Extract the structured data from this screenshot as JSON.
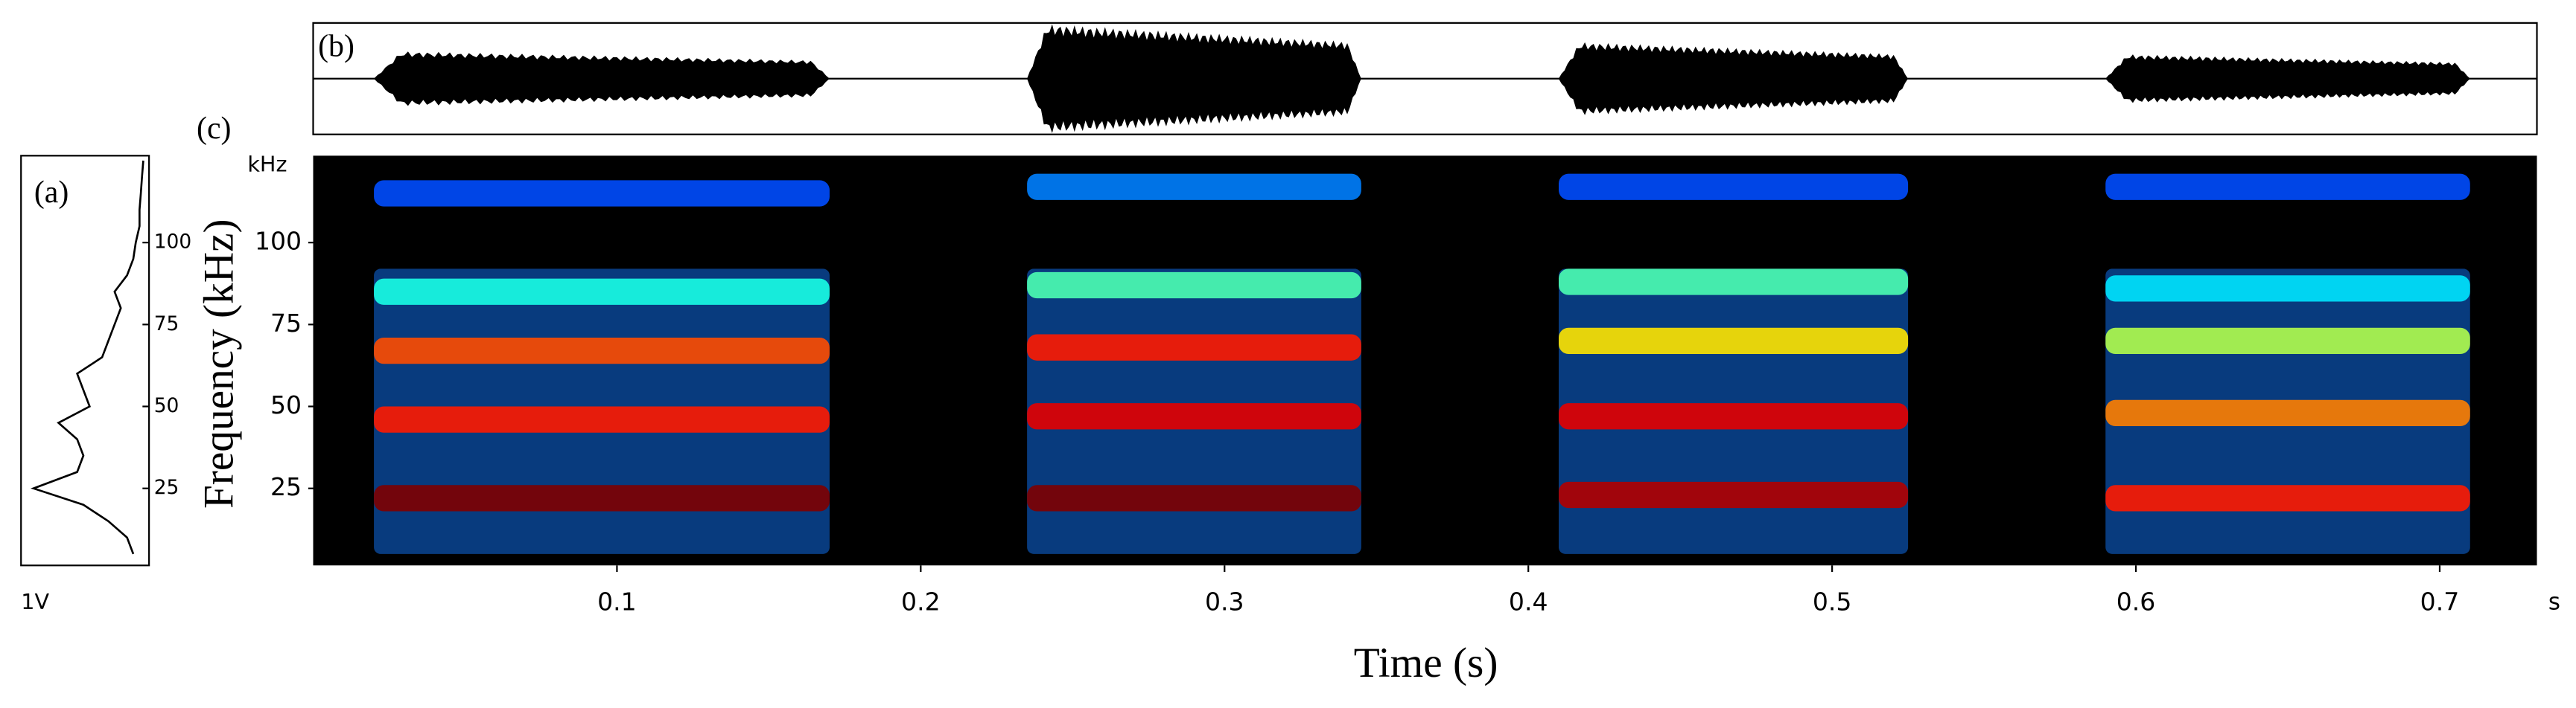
{
  "chart_data": [
    {
      "type": "spectrum",
      "label": "(a)",
      "x_label": "1V",
      "y": [
        5,
        10,
        15,
        20,
        25,
        30,
        35,
        40,
        45,
        50,
        55,
        60,
        65,
        70,
        75,
        80,
        85,
        90,
        95,
        100,
        105,
        110,
        115,
        120,
        125
      ],
      "values": [
        0.1,
        0.15,
        0.3,
        0.5,
        0.9,
        0.55,
        0.5,
        0.55,
        0.7,
        0.45,
        0.5,
        0.55,
        0.35,
        0.3,
        0.25,
        0.2,
        0.25,
        0.15,
        0.1,
        0.08,
        0.05,
        0.05,
        0.04,
        0.03,
        0.02
      ],
      "xlim": [
        0,
        1
      ],
      "ylim": [
        1.5,
        126.5
      ],
      "yticks": [
        25,
        50,
        75,
        100
      ],
      "color": "#000000"
    },
    {
      "type": "waveform",
      "label": "(b)",
      "xlim": [
        0,
        0.732
      ],
      "ylim": [
        -1,
        1
      ],
      "color": "#000000",
      "calls": [
        {
          "start": 0.02,
          "end": 0.17,
          "amplitude": 0.45
        },
        {
          "start": 0.235,
          "end": 0.345,
          "amplitude": 0.9
        },
        {
          "start": 0.41,
          "end": 0.525,
          "amplitude": 0.6
        },
        {
          "start": 0.59,
          "end": 0.71,
          "amplitude": 0.4
        }
      ]
    },
    {
      "type": "spectrogram",
      "label": "(c)",
      "y_label": "Frequency (kHz)",
      "x_label": "Time (s)",
      "y_unit": "kHz",
      "x_unit": "s",
      "background": "#000000",
      "xlim": [
        0,
        0.732
      ],
      "xticks": [
        0.1,
        0.2,
        0.3,
        0.4,
        0.5,
        0.6,
        0.7
      ],
      "ylim": [
        1.5,
        126.5
      ],
      "yticks": [
        25,
        50,
        75,
        100
      ],
      "calls": [
        {
          "start": 0.02,
          "end": 0.17,
          "harmonics": [
            {
              "freq": 22,
              "level": 1.0
            },
            {
              "freq": 46,
              "level": 0.85
            },
            {
              "freq": 67,
              "level": 0.8
            },
            {
              "freq": 85,
              "level": 0.4
            },
            {
              "freq": 115,
              "level": 0.2
            }
          ]
        },
        {
          "start": 0.235,
          "end": 0.345,
          "harmonics": [
            {
              "freq": 22,
              "level": 1.0
            },
            {
              "freq": 47,
              "level": 0.9
            },
            {
              "freq": 68,
              "level": 0.85
            },
            {
              "freq": 87,
              "level": 0.45
            },
            {
              "freq": 117,
              "level": 0.25
            }
          ]
        },
        {
          "start": 0.41,
          "end": 0.525,
          "harmonics": [
            {
              "freq": 23,
              "level": 0.95
            },
            {
              "freq": 47,
              "level": 0.9
            },
            {
              "freq": 70,
              "level": 0.65
            },
            {
              "freq": 88,
              "level": 0.45
            },
            {
              "freq": 117,
              "level": 0.2
            }
          ]
        },
        {
          "start": 0.59,
          "end": 0.71,
          "harmonics": [
            {
              "freq": 22,
              "level": 0.85
            },
            {
              "freq": 48,
              "level": 0.75
            },
            {
              "freq": 70,
              "level": 0.55
            },
            {
              "freq": 86,
              "level": 0.35
            },
            {
              "freq": 117,
              "level": 0.2
            }
          ]
        }
      ]
    }
  ]
}
